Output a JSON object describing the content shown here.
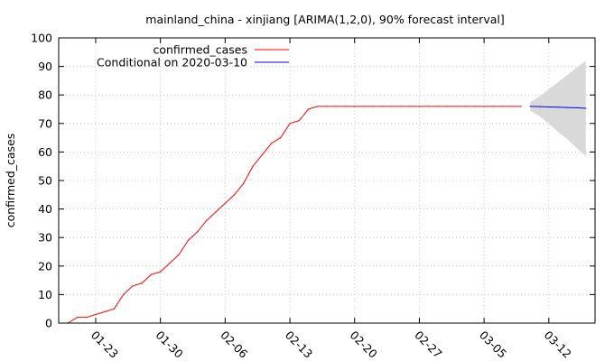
{
  "chart_data": {
    "type": "line",
    "title": "mainland_china - xinjiang [ARIMA(1,2,0), 90% forecast interval]",
    "xlabel": "",
    "ylabel": "confirmed_cases",
    "x_axis": {
      "type": "date",
      "range": [
        "2020-01-19",
        "2020-03-17"
      ],
      "ticks": [
        {
          "date": "2020-01-23",
          "label": "01-23"
        },
        {
          "date": "2020-01-30",
          "label": "01-30"
        },
        {
          "date": "2020-02-06",
          "label": "02-06"
        },
        {
          "date": "2020-02-13",
          "label": "02-13"
        },
        {
          "date": "2020-02-20",
          "label": "02-20"
        },
        {
          "date": "2020-02-27",
          "label": "02-27"
        },
        {
          "date": "2020-03-05",
          "label": "03-05"
        },
        {
          "date": "2020-03-12",
          "label": "03-12"
        }
      ]
    },
    "ylim": [
      0,
      100
    ],
    "yticks": [
      0,
      10,
      20,
      30,
      40,
      50,
      60,
      70,
      80,
      90,
      100
    ],
    "grid": true,
    "legend_position": "top-left",
    "series": [
      {
        "name": "confirmed_cases",
        "color": "#ff0000",
        "points": [
          [
            "2020-01-20",
            0
          ],
          [
            "2020-01-21",
            2
          ],
          [
            "2020-01-22",
            2
          ],
          [
            "2020-01-23",
            3
          ],
          [
            "2020-01-24",
            4
          ],
          [
            "2020-01-25",
            5
          ],
          [
            "2020-01-26",
            10
          ],
          [
            "2020-01-27",
            13
          ],
          [
            "2020-01-28",
            14
          ],
          [
            "2020-01-29",
            17
          ],
          [
            "2020-01-30",
            18
          ],
          [
            "2020-01-31",
            21
          ],
          [
            "2020-02-01",
            24
          ],
          [
            "2020-02-02",
            29
          ],
          [
            "2020-02-03",
            32
          ],
          [
            "2020-02-04",
            36
          ],
          [
            "2020-02-05",
            39
          ],
          [
            "2020-02-06",
            42
          ],
          [
            "2020-02-07",
            45
          ],
          [
            "2020-02-08",
            49
          ],
          [
            "2020-02-09",
            55
          ],
          [
            "2020-02-10",
            59
          ],
          [
            "2020-02-11",
            63
          ],
          [
            "2020-02-12",
            65
          ],
          [
            "2020-02-13",
            70
          ],
          [
            "2020-02-14",
            71
          ],
          [
            "2020-02-15",
            75
          ],
          [
            "2020-02-16",
            76
          ],
          [
            "2020-02-17",
            76
          ],
          [
            "2020-02-18",
            76
          ],
          [
            "2020-02-19",
            76
          ],
          [
            "2020-02-20",
            76
          ],
          [
            "2020-02-21",
            76
          ],
          [
            "2020-02-22",
            76
          ],
          [
            "2020-02-23",
            76
          ],
          [
            "2020-02-24",
            76
          ],
          [
            "2020-02-25",
            76
          ],
          [
            "2020-02-26",
            76
          ],
          [
            "2020-02-27",
            76
          ],
          [
            "2020-02-28",
            76
          ],
          [
            "2020-02-29",
            76
          ],
          [
            "2020-03-01",
            76
          ],
          [
            "2020-03-02",
            76
          ],
          [
            "2020-03-03",
            76
          ],
          [
            "2020-03-04",
            76
          ],
          [
            "2020-03-05",
            76
          ],
          [
            "2020-03-06",
            76
          ],
          [
            "2020-03-07",
            76
          ],
          [
            "2020-03-08",
            76
          ],
          [
            "2020-03-09",
            76
          ]
        ]
      },
      {
        "name": "Conditional on 2020-03-10",
        "color": "#0000ff",
        "points": [
          [
            "2020-03-10",
            76
          ],
          [
            "2020-03-11",
            75.9
          ],
          [
            "2020-03-12",
            75.8
          ],
          [
            "2020-03-13",
            75.7
          ],
          [
            "2020-03-14",
            75.6
          ],
          [
            "2020-03-15",
            75.5
          ],
          [
            "2020-03-16",
            75.3
          ]
        ]
      }
    ],
    "forecast_interval": {
      "level": "90%",
      "color": "#d9d9d9",
      "points": [
        [
          "2020-03-10",
          74.5,
          77.5
        ],
        [
          "2020-03-11",
          72.5,
          79.5
        ],
        [
          "2020-03-12",
          70,
          82
        ],
        [
          "2020-03-13",
          67,
          84.5
        ],
        [
          "2020-03-14",
          64.5,
          87
        ],
        [
          "2020-03-15",
          61.5,
          89.5
        ],
        [
          "2020-03-16",
          58.5,
          92
        ]
      ]
    }
  }
}
